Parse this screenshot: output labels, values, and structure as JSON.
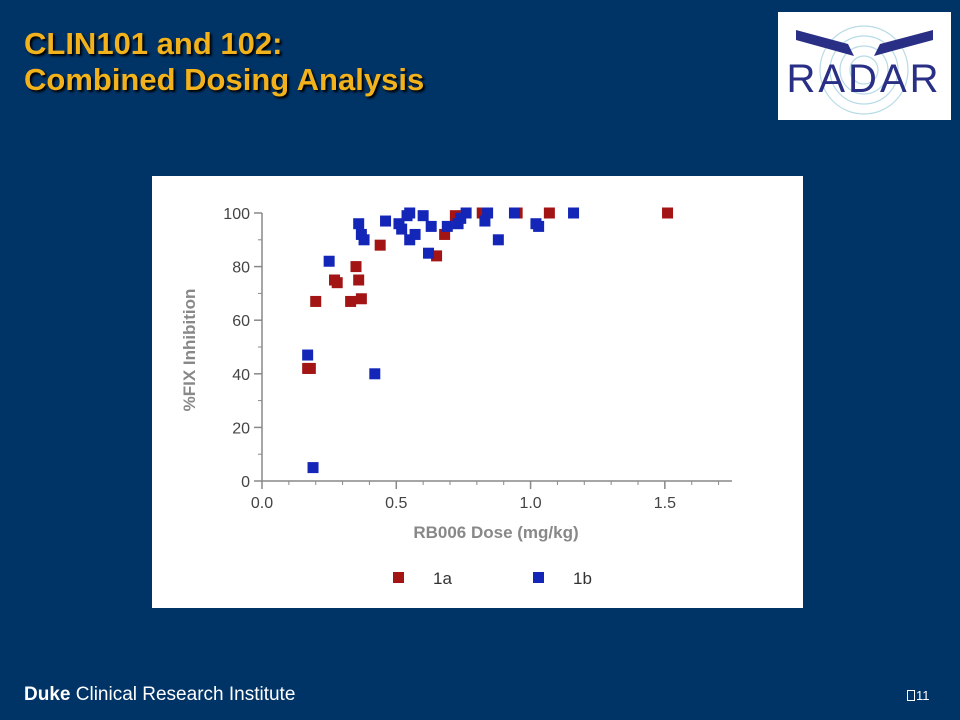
{
  "slide": {
    "title_line1": "CLIN101 and 102:",
    "title_line2": "Combined Dosing Analysis",
    "logo_text": "RADAR",
    "footer_bold": "Duke",
    "footer_rest": "Clinical Research Institute",
    "page_number": "11"
  },
  "colors": {
    "background": "#003366",
    "title": "#f2b21c",
    "series_1a": "#a31515",
    "series_1b": "#1426b8",
    "axis": "#888888"
  },
  "chart_data": {
    "type": "scatter",
    "xlabel": "RB006 Dose (mg/kg)",
    "ylabel": "%FIX Inhibition",
    "xlim": [
      0.0,
      1.75
    ],
    "ylim": [
      0,
      100
    ],
    "x_ticks": [
      "0.0",
      "0.5",
      "1.0",
      "1.5"
    ],
    "y_ticks": [
      "0",
      "20",
      "40",
      "60",
      "80",
      "100"
    ],
    "legend_position": "bottom",
    "series": [
      {
        "name": "1a",
        "color": "#a31515",
        "points": [
          [
            0.17,
            42
          ],
          [
            0.18,
            42
          ],
          [
            0.2,
            67
          ],
          [
            0.27,
            75
          ],
          [
            0.28,
            74
          ],
          [
            0.33,
            67
          ],
          [
            0.35,
            80
          ],
          [
            0.36,
            75
          ],
          [
            0.37,
            68
          ],
          [
            0.44,
            88
          ],
          [
            0.65,
            84
          ],
          [
            0.68,
            92
          ],
          [
            0.72,
            99
          ],
          [
            0.82,
            100
          ],
          [
            0.95,
            100
          ],
          [
            1.07,
            100
          ],
          [
            1.51,
            100
          ]
        ]
      },
      {
        "name": "1b",
        "color": "#1426b8",
        "points": [
          [
            0.17,
            47
          ],
          [
            0.19,
            5
          ],
          [
            0.25,
            82
          ],
          [
            0.36,
            96
          ],
          [
            0.37,
            92
          ],
          [
            0.38,
            90
          ],
          [
            0.42,
            40
          ],
          [
            0.46,
            97
          ],
          [
            0.51,
            96
          ],
          [
            0.52,
            94
          ],
          [
            0.54,
            99
          ],
          [
            0.55,
            100
          ],
          [
            0.55,
            90
          ],
          [
            0.57,
            92
          ],
          [
            0.6,
            99
          ],
          [
            0.62,
            85
          ],
          [
            0.63,
            95
          ],
          [
            0.69,
            95
          ],
          [
            0.73,
            96
          ],
          [
            0.74,
            98
          ],
          [
            0.76,
            100
          ],
          [
            0.83,
            97
          ],
          [
            0.84,
            100
          ],
          [
            0.88,
            90
          ],
          [
            0.94,
            100
          ],
          [
            1.02,
            96
          ],
          [
            1.03,
            95
          ],
          [
            1.16,
            100
          ]
        ]
      }
    ]
  }
}
